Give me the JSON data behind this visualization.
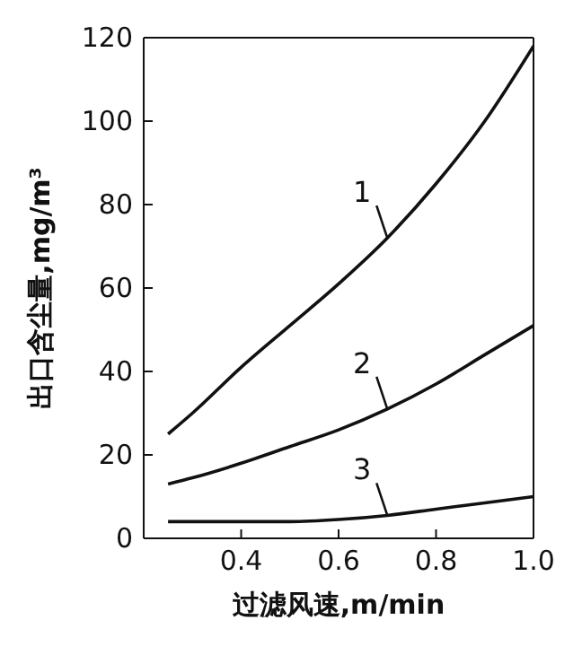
{
  "chart_data": {
    "type": "line",
    "xlabel": "过滤风速,m/min",
    "ylabel": "出口含尘量,mg/m³",
    "x": [
      0.25,
      0.3,
      0.4,
      0.5,
      0.6,
      0.7,
      0.8,
      0.9,
      1.0
    ],
    "series": [
      {
        "name": "1",
        "color": "#111111",
        "values": [
          25,
          30,
          41,
          51,
          61,
          72,
          85,
          100,
          118
        ]
      },
      {
        "name": "2",
        "color": "#111111",
        "values": [
          13,
          14.5,
          18,
          22,
          26,
          31,
          37,
          44,
          51
        ]
      },
      {
        "name": "3",
        "color": "#111111",
        "values": [
          4,
          4,
          4,
          4,
          4.5,
          5.5,
          7,
          8.5,
          10
        ]
      }
    ],
    "xlim": [
      0.2,
      1.0
    ],
    "xticks": [
      0.4,
      0.6,
      0.8,
      {
        "value": 1.0,
        "label": "1.0"
      }
    ],
    "ylim": [
      0,
      120
    ],
    "yticks": [
      0,
      20,
      40,
      60,
      80,
      100,
      120
    ],
    "grid": false,
    "legend": false,
    "marker": "none",
    "line_style": "solid"
  }
}
